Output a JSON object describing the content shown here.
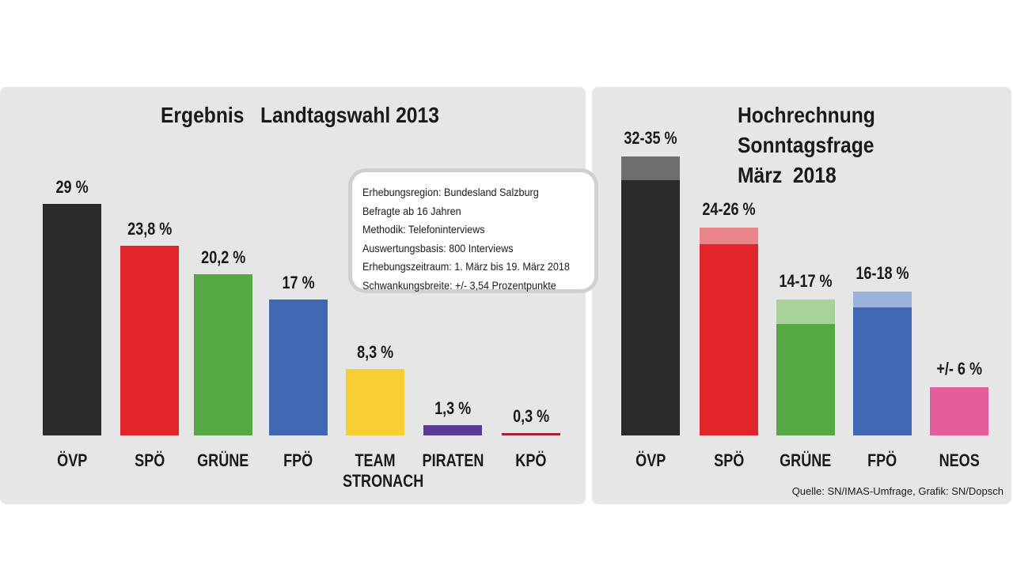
{
  "chart_data": [
    {
      "type": "bar",
      "title": "Ergebnis   Landtagswahl 2013",
      "categories": [
        "ÖVP",
        "SPÖ",
        "GRÜNE",
        "FPÖ",
        "TEAM STRONACH",
        "PIRATEN",
        "KPÖ"
      ],
      "values": [
        29,
        23.8,
        20.2,
        17,
        8.3,
        1.3,
        0.3
      ],
      "value_labels": [
        "29 %",
        "23,8 %",
        "20,2 %",
        "17 %",
        "8,3 %",
        "1,3 %",
        "0,3 %"
      ],
      "colors": [
        "#2b2a29",
        "#e0262b",
        "#55a843",
        "#3f68b2",
        "#f8cf32",
        "#5b3b93",
        "#a3262f"
      ]
    },
    {
      "type": "range_bar",
      "title": [
        "Hochrechnung",
        "Sonntagsfrage",
        "März  2018"
      ],
      "categories": [
        "ÖVP",
        "SPÖ",
        "GRÜNE",
        "FPÖ",
        "NEOS"
      ],
      "low": [
        32,
        24,
        14,
        16,
        6
      ],
      "high": [
        35,
        26,
        17,
        18,
        null
      ],
      "value_labels": [
        "32-35 %",
        "24-26 %",
        "14-17 %",
        "16-18 %",
        "+/- 6 %"
      ],
      "colors": [
        "#2b2a29",
        "#e0262b",
        "#55a843",
        "#3f68b2",
        "#e35d9a"
      ],
      "light_colors": [
        "#6d6e70",
        "#e8848a",
        "#a7d39a",
        "#9bb2dc",
        null
      ]
    }
  ],
  "info_box": [
    "Erhebungsregion: Bundesland Salzburg",
    "Befragte ab 16 Jahren",
    "Methodik: Telefoninterviews",
    "Auswertungsbasis: 800 Interviews",
    "Erhebungszeitraum: 1. März bis 19. März 2018",
    "Schwankungsbreite: +/- 3,54 Prozentpunkte"
  ],
  "source": "Quelle: SN/IMAS-Umfrage, Grafik: SN/Dopsch"
}
